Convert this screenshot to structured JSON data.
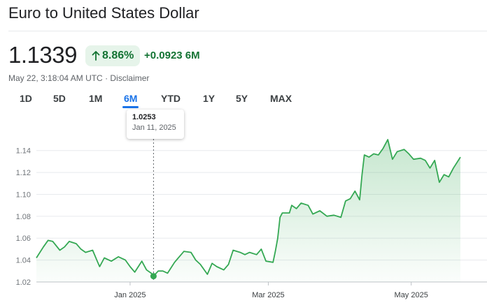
{
  "header": {
    "title": "Euro to United States Dollar"
  },
  "quote": {
    "price": "1.1339",
    "change_pct": "8.86%",
    "change_abs": "+0.0923 6M",
    "timestamp": "May 22, 3:18:04 AM UTC",
    "separator": " · ",
    "disclaimer": "Disclaimer",
    "accent_color": "#137333",
    "badge_color": "#e6f4ea"
  },
  "tabs": [
    {
      "label": "1D"
    },
    {
      "label": "5D"
    },
    {
      "label": "1M"
    },
    {
      "label": "6M"
    },
    {
      "label": "YTD"
    },
    {
      "label": "1Y"
    },
    {
      "label": "5Y"
    },
    {
      "label": "MAX"
    }
  ],
  "active_tab": "6M",
  "tooltip": {
    "value": "1.0253",
    "date": "Jan 11, 2025"
  },
  "chart_data": {
    "type": "area",
    "title": "",
    "xlabel": "",
    "ylabel": "",
    "ylim": [
      1.02,
      1.15
    ],
    "yticks": [
      "1.02",
      "1.04",
      "1.06",
      "1.08",
      "1.10",
      "1.12",
      "1.14"
    ],
    "xticks": [
      "Jan 2025",
      "Mar 2025",
      "May 2025"
    ],
    "xtick_dates": [
      "2025-01-01",
      "2025-03-01",
      "2025-05-01"
    ],
    "xlim": [
      "2024-11-22",
      "2025-05-22"
    ],
    "grid": true,
    "line_color": "#34a853",
    "highlight": {
      "x": "2025-01-11",
      "y": 1.0253
    },
    "series": [
      {
        "x": [
          "2024-11-22",
          "2024-11-25",
          "2024-11-27",
          "2024-11-29",
          "2024-12-02",
          "2024-12-04",
          "2024-12-06",
          "2024-12-09",
          "2024-12-11",
          "2024-12-13",
          "2024-12-16",
          "2024-12-18",
          "2024-12-19",
          "2024-12-21",
          "2024-12-24",
          "2024-12-27",
          "2024-12-30",
          "2025-01-01",
          "2025-01-03",
          "2025-01-06",
          "2025-01-08",
          "2025-01-10",
          "2025-01-11",
          "2025-01-13",
          "2025-01-15",
          "2025-01-17",
          "2025-01-20",
          "2025-01-22",
          "2025-01-24",
          "2025-01-27",
          "2025-01-29",
          "2025-01-31",
          "2025-02-03",
          "2025-02-05",
          "2025-02-07",
          "2025-02-10",
          "2025-02-12",
          "2025-02-14",
          "2025-02-17",
          "2025-02-19",
          "2025-02-21",
          "2025-02-24",
          "2025-02-26",
          "2025-02-28",
          "2025-03-03",
          "2025-03-04",
          "2025-03-05",
          "2025-03-06",
          "2025-03-07",
          "2025-03-10",
          "2025-03-11",
          "2025-03-13",
          "2025-03-15",
          "2025-03-18",
          "2025-03-20",
          "2025-03-23",
          "2025-03-26",
          "2025-03-29",
          "2025-04-01",
          "2025-04-03",
          "2025-04-05",
          "2025-04-07",
          "2025-04-09",
          "2025-04-10",
          "2025-04-11",
          "2025-04-13",
          "2025-04-15",
          "2025-04-17",
          "2025-04-19",
          "2025-04-21",
          "2025-04-23",
          "2025-04-25",
          "2025-04-28",
          "2025-04-30",
          "2025-05-02",
          "2025-05-05",
          "2025-05-07",
          "2025-05-09",
          "2025-05-11",
          "2025-05-13",
          "2025-05-15",
          "2025-05-17",
          "2025-05-19",
          "2025-05-22"
        ],
        "y": [
          1.042,
          1.052,
          1.058,
          1.057,
          1.049,
          1.052,
          1.057,
          1.055,
          1.05,
          1.047,
          1.049,
          1.039,
          1.034,
          1.042,
          1.039,
          1.043,
          1.04,
          1.034,
          1.029,
          1.039,
          1.031,
          1.028,
          1.0253,
          1.03,
          1.03,
          1.028,
          1.038,
          1.043,
          1.048,
          1.047,
          1.04,
          1.036,
          1.027,
          1.037,
          1.034,
          1.031,
          1.036,
          1.049,
          1.047,
          1.045,
          1.047,
          1.045,
          1.05,
          1.039,
          1.038,
          1.048,
          1.06,
          1.079,
          1.083,
          1.083,
          1.09,
          1.087,
          1.092,
          1.09,
          1.082,
          1.085,
          1.08,
          1.081,
          1.079,
          1.094,
          1.096,
          1.103,
          1.095,
          1.118,
          1.136,
          1.134,
          1.137,
          1.136,
          1.142,
          1.15,
          1.132,
          1.139,
          1.141,
          1.137,
          1.132,
          1.133,
          1.131,
          1.124,
          1.131,
          1.111,
          1.118,
          1.116,
          1.124,
          1.134
        ]
      }
    ]
  }
}
